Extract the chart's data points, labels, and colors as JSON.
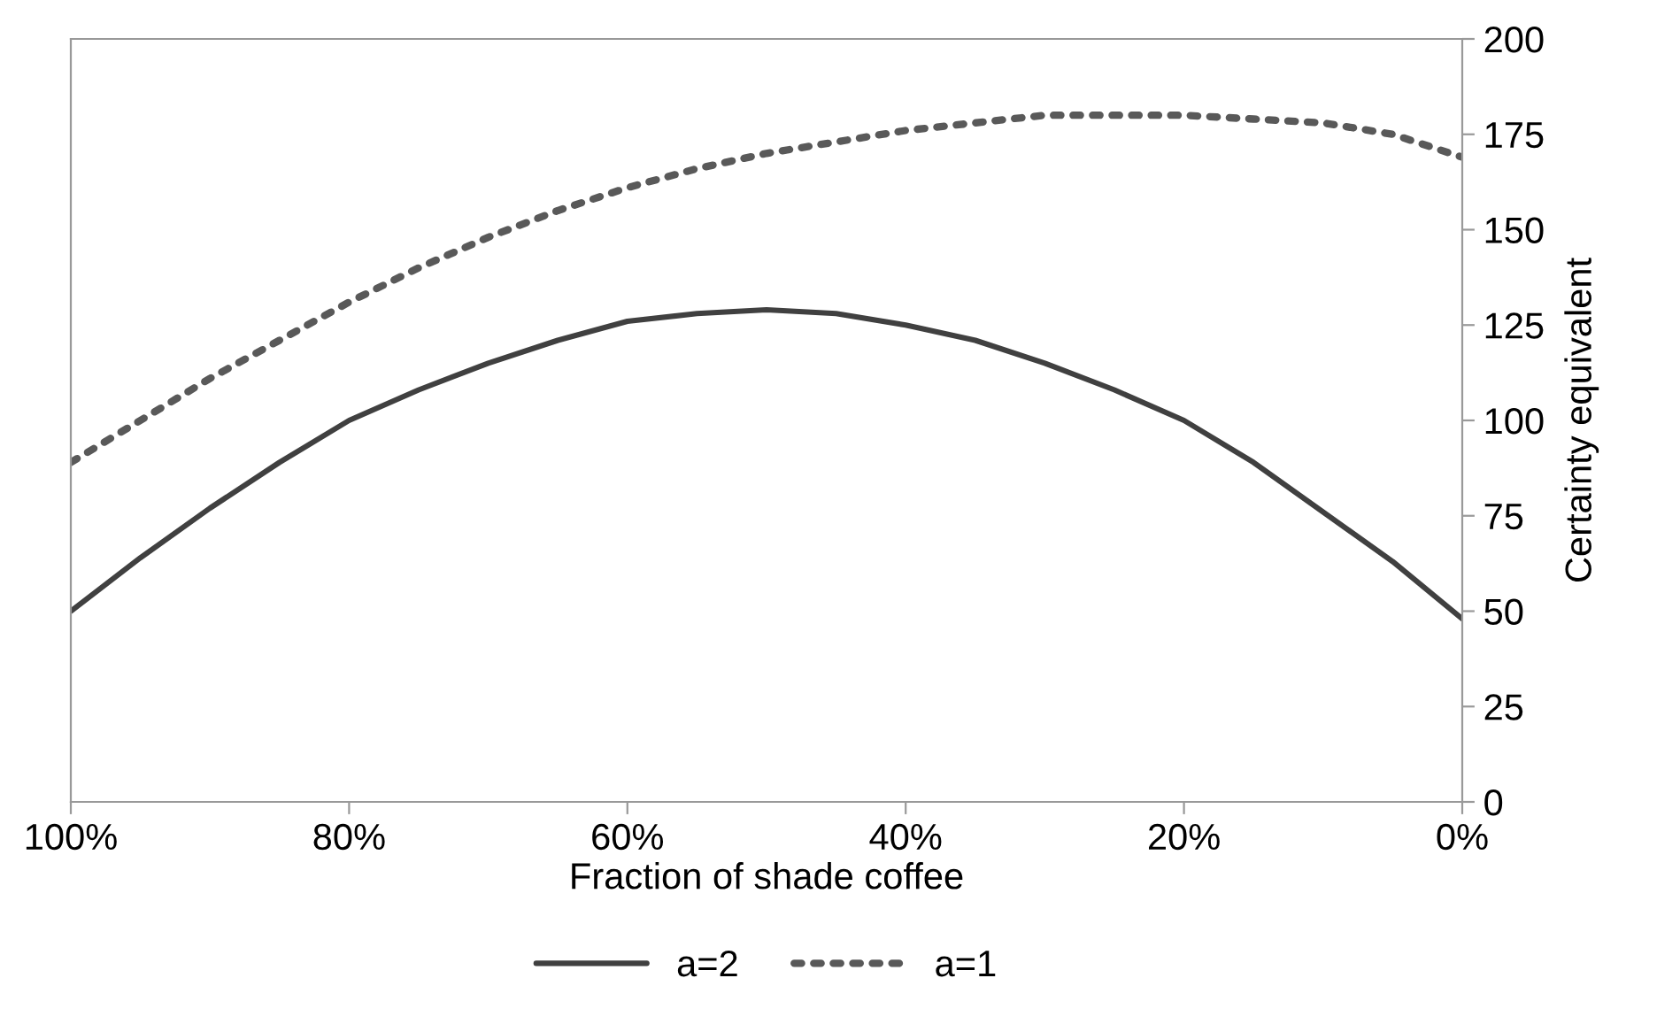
{
  "chart_data": {
    "type": "line",
    "xlabel": "Fraction of shade coffee",
    "ylabel": "Certainty equivalent",
    "x": [
      100,
      95,
      90,
      85,
      80,
      75,
      70,
      65,
      60,
      55,
      50,
      45,
      40,
      35,
      30,
      25,
      20,
      15,
      10,
      5,
      0
    ],
    "series": [
      {
        "name": "a=2",
        "color": "#404040",
        "line_style": "solid",
        "values": [
          50,
          64,
          77,
          89,
          100,
          108,
          115,
          121,
          126,
          128,
          129,
          128,
          125,
          121,
          115,
          108,
          100,
          89,
          76,
          63,
          48
        ]
      },
      {
        "name": "a=1",
        "color": "#595959",
        "line_style": "dotted",
        "values": [
          89,
          100,
          111,
          121,
          131,
          140,
          148,
          155,
          161,
          166,
          170,
          173,
          176,
          178,
          180,
          180,
          180,
          179,
          178,
          175,
          169
        ]
      }
    ],
    "xlim": [
      100,
      0
    ],
    "xticks": [
      {
        "value": 100,
        "label": "100%"
      },
      {
        "value": 80,
        "label": "80%"
      },
      {
        "value": 60,
        "label": "60%"
      },
      {
        "value": 40,
        "label": "40%"
      },
      {
        "value": 20,
        "label": "20%"
      },
      {
        "value": 0,
        "label": "0%"
      }
    ],
    "ylim": [
      0,
      200
    ],
    "yticks": [
      0,
      25,
      50,
      75,
      100,
      125,
      150,
      175,
      200
    ],
    "grid": false,
    "legend": "bottom",
    "marker": "none"
  }
}
